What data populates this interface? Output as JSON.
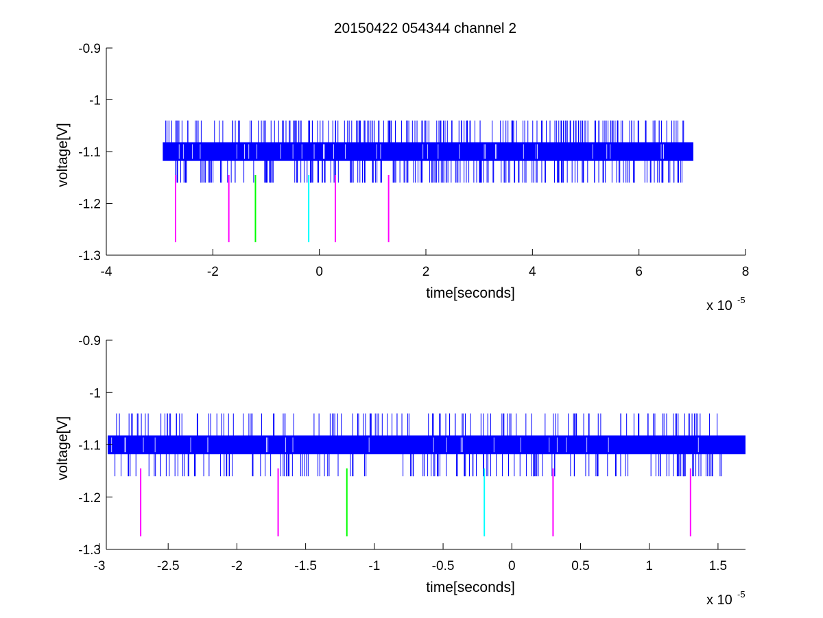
{
  "figure": {
    "title": "20150422 054344 channel 2",
    "background": "#ffffff"
  },
  "colors": {
    "trace": "#0000ff",
    "magenta": "#ff00ff",
    "green": "#00ff00",
    "cyan": "#00ffff",
    "axis": "#000000"
  },
  "chart_data": [
    {
      "type": "line",
      "title": "20150422 054344 channel 2",
      "xlabel": "time[seconds]",
      "ylabel": "voltage[V]",
      "x_exponent": "x 10",
      "x_exponent_power": "-5",
      "xlim": [
        -4,
        8
      ],
      "ylim": [
        -1.3,
        -0.9
      ],
      "xticks": [
        -4,
        -2,
        0,
        2,
        4,
        6,
        8
      ],
      "xtick_labels": [
        "-4",
        "-2",
        "0",
        "2",
        "4",
        "6",
        "8"
      ],
      "yticks": [
        -0.9,
        -1,
        -1.1,
        -1.2,
        -1.3
      ],
      "ytick_labels": [
        "-0.9",
        "-1",
        "-1.1",
        "-1.2",
        "-1.3"
      ],
      "grid": false,
      "trace": {
        "color": "#0000ff",
        "x_range": [
          -2.94,
          7.02
        ],
        "baseline_band": [
          -1.118,
          -1.082
        ],
        "spike_high": -1.04,
        "spike_low": -1.16,
        "spike_seed": 11,
        "spike_count": 420
      },
      "markers": [
        {
          "x": -2.7,
          "y": [
            -1.275,
            -1.145
          ],
          "color": "#ff00ff"
        },
        {
          "x": -1.7,
          "y": [
            -1.275,
            -1.145
          ],
          "color": "#ff00ff"
        },
        {
          "x": -1.2,
          "y": [
            -1.275,
            -1.145
          ],
          "color": "#00ff00"
        },
        {
          "x": -0.2,
          "y": [
            -1.275,
            -1.145
          ],
          "color": "#00ffff"
        },
        {
          "x": 0.3,
          "y": [
            -1.275,
            -1.145
          ],
          "color": "#ff00ff"
        },
        {
          "x": 1.3,
          "y": [
            -1.275,
            -1.145
          ],
          "color": "#ff00ff"
        }
      ]
    },
    {
      "type": "line",
      "title": "",
      "xlabel": "time[seconds]",
      "ylabel": "voltage[V]",
      "x_exponent": "x 10",
      "x_exponent_power": "-5",
      "xlim": [
        -2.95,
        1.7
      ],
      "ylim": [
        -1.3,
        -0.9
      ],
      "xticks": [
        -3,
        -2.5,
        -2,
        -1.5,
        -1,
        -0.5,
        0,
        0.5,
        1,
        1.5
      ],
      "xtick_labels": [
        "-3",
        "-2.5",
        "-2",
        "-1.5",
        "-1",
        "-0.5",
        "0",
        "0.5",
        "1",
        "1.5"
      ],
      "yticks": [
        -0.9,
        -1,
        -1.1,
        -1.2,
        -1.3
      ],
      "ytick_labels": [
        "-0.9",
        "-1",
        "-1.1",
        "-1.2",
        "-1.3"
      ],
      "grid": false,
      "trace": {
        "color": "#0000ff",
        "x_range": [
          -2.94,
          1.7
        ],
        "baseline_band": [
          -1.118,
          -1.082
        ],
        "spike_high": -1.04,
        "spike_low": -1.16,
        "spike_seed": 29,
        "spike_count": 300
      },
      "markers": [
        {
          "x": -2.7,
          "y": [
            -1.275,
            -1.145
          ],
          "color": "#ff00ff"
        },
        {
          "x": -1.7,
          "y": [
            -1.275,
            -1.145
          ],
          "color": "#ff00ff"
        },
        {
          "x": -1.2,
          "y": [
            -1.275,
            -1.145
          ],
          "color": "#00ff00"
        },
        {
          "x": -0.2,
          "y": [
            -1.275,
            -1.145
          ],
          "color": "#00ffff"
        },
        {
          "x": 0.3,
          "y": [
            -1.275,
            -1.145
          ],
          "color": "#ff00ff"
        },
        {
          "x": 1.3,
          "y": [
            -1.275,
            -1.145
          ],
          "color": "#ff00ff"
        }
      ]
    }
  ]
}
